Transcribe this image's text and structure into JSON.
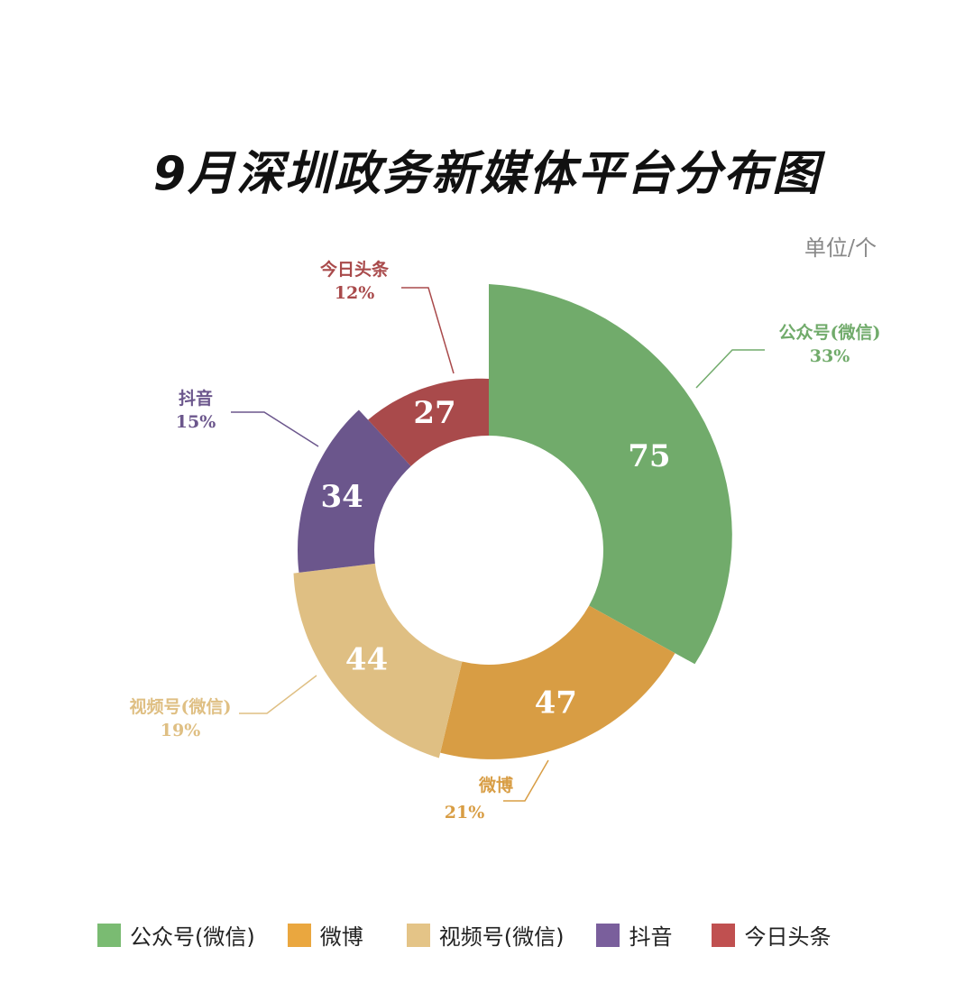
{
  "chart_data": {
    "type": "pie",
    "subtype": "rose-donut",
    "title": "9月深圳政务新媒体平台分布图",
    "unit_label": "单位/个",
    "categories": [
      "公众号(微信)",
      "微博",
      "视频号(微信)",
      "抖音",
      "今日头条"
    ],
    "values": [
      75,
      47,
      44,
      34,
      27
    ],
    "percent_labels": [
      "33%",
      "21%",
      "19%",
      "15%",
      "12%"
    ],
    "slice_colors": [
      "#71ab6b",
      "#d89d44",
      "#dfbf83",
      "#6b568c",
      "#a94a4b"
    ],
    "legend_colors": [
      "#7abb72",
      "#eaa73f",
      "#e4c487",
      "#7a5f9c",
      "#c05050"
    ],
    "legend_position": "bottom"
  }
}
